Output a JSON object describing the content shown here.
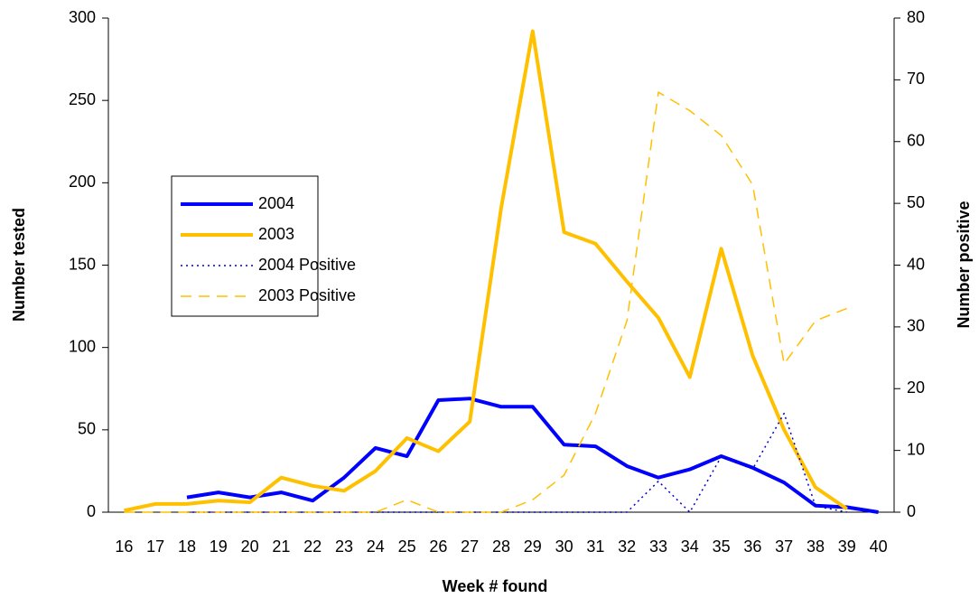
{
  "chart_data": {
    "type": "line",
    "x_label": "Week # found",
    "y_label": "Number  tested",
    "y2_label": "Number positive",
    "categories": [
      "16",
      "17",
      "18",
      "19",
      "20",
      "21",
      "22",
      "23",
      "24",
      "25",
      "26",
      "27",
      "28",
      "29",
      "30",
      "31",
      "32",
      "33",
      "34",
      "35",
      "36",
      "37",
      "38",
      "39",
      "40"
    ],
    "ylim": [
      0,
      300
    ],
    "yticks": [
      0,
      50,
      100,
      150,
      200,
      250,
      300
    ],
    "y2lim": [
      0,
      80
    ],
    "y2ticks": [
      0,
      10,
      20,
      30,
      40,
      50,
      60,
      70,
      80
    ],
    "series": [
      {
        "name": "2004",
        "color": "#0000ff",
        "style": "solid",
        "width": 4,
        "values": [
          null,
          null,
          9,
          12,
          9,
          12,
          7,
          21,
          39,
          34,
          68,
          69,
          64,
          64,
          41,
          40,
          28,
          21,
          26,
          34,
          27,
          18,
          4,
          3,
          0
        ]
      },
      {
        "name": "2003",
        "color": "#ffc000",
        "style": "solid",
        "width": 4,
        "values": [
          1,
          5,
          5,
          7,
          6,
          21,
          16,
          13,
          25,
          45,
          37,
          55,
          185,
          292,
          170,
          163,
          140,
          118,
          82,
          160,
          95,
          50,
          15,
          2,
          null
        ]
      },
      {
        "name": "2004 Positive",
        "color": "#0000cc",
        "style": "dotted",
        "width": 1.5,
        "axis": "y2",
        "values": [
          null,
          null,
          0,
          0,
          0,
          0,
          0,
          0,
          0,
          0,
          0,
          0,
          0,
          0,
          0,
          0,
          0,
          5,
          0,
          9,
          7,
          16,
          1,
          0,
          null
        ]
      },
      {
        "name": "2003 Positive",
        "color": "#ffc000",
        "style": "dashed",
        "width": 1.5,
        "axis": "y2",
        "values": [
          0,
          0,
          0,
          0,
          0,
          0,
          0,
          0,
          0,
          2,
          0,
          0,
          0,
          2,
          6,
          16,
          31,
          68,
          65,
          61,
          53,
          24,
          31,
          33,
          null
        ]
      }
    ]
  }
}
